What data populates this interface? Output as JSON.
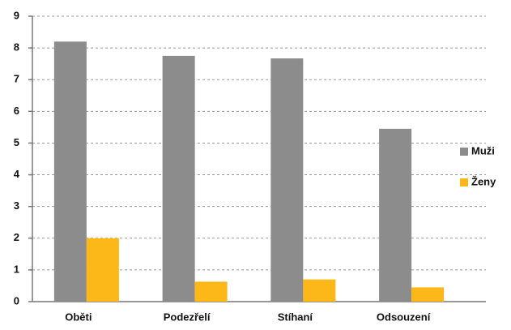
{
  "chart_data": {
    "type": "bar",
    "categories": [
      "Oběti",
      "Podezřelí",
      "Stíhaní",
      "Odsouzení"
    ],
    "series": [
      {
        "name": "Muži",
        "color": "#8c8c8c",
        "values": [
          8.2,
          7.75,
          7.67,
          5.45
        ]
      },
      {
        "name": "Ženy",
        "color": "#fbb818",
        "values": [
          2.0,
          0.63,
          0.7,
          0.45
        ]
      }
    ],
    "ylim": [
      0,
      9
    ],
    "yticks": [
      0,
      1,
      2,
      3,
      4,
      5,
      6,
      7,
      8,
      9
    ],
    "grid": true,
    "legend": "right"
  }
}
